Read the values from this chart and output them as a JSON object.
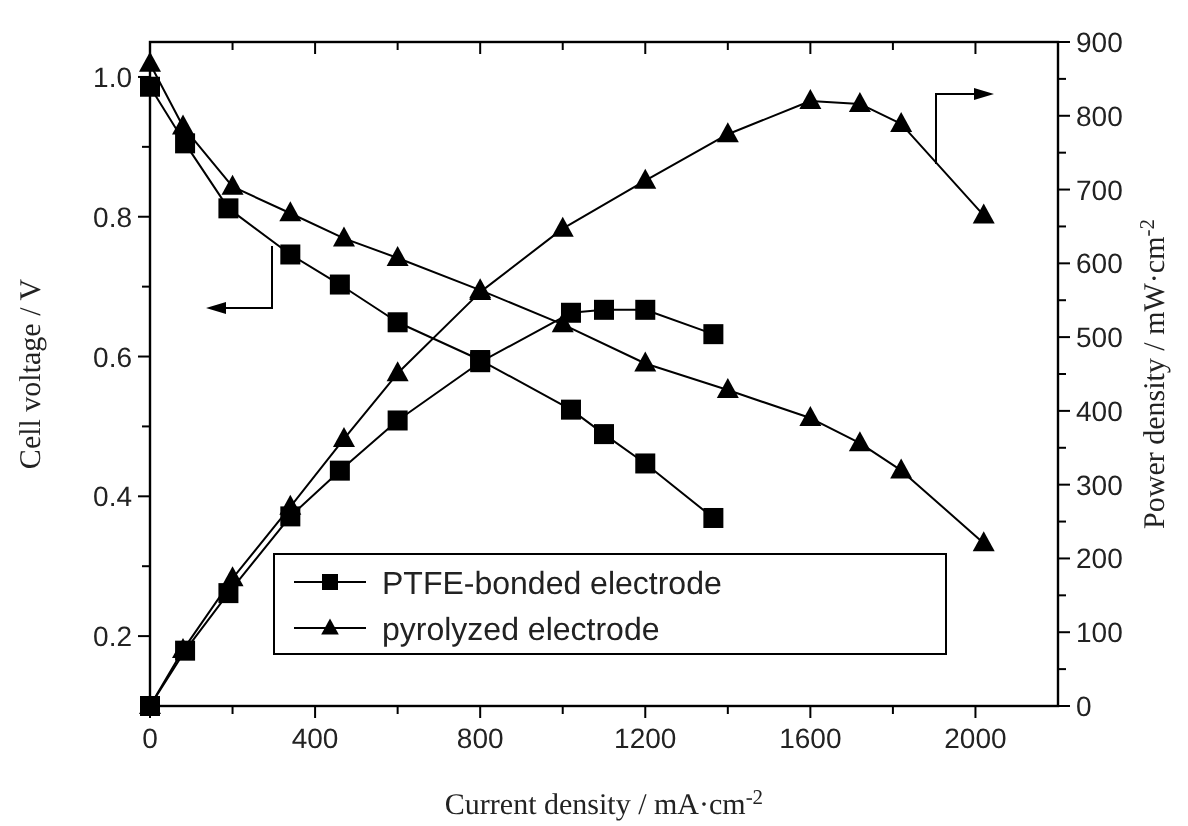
{
  "chart_data": {
    "type": "line",
    "xlabel": "Current density / mA·cm$^{-2}$",
    "ylabel": "Cell voltage / V",
    "y2label": "Power density  / mW·cm$^{-2}$",
    "xlim": [
      0,
      2200
    ],
    "xticks": [
      0,
      {
        "value": 200,
        "label": null
      },
      400,
      {
        "value": 600,
        "label": null
      },
      800,
      {
        "value": 1000,
        "label": null
      },
      1200,
      {
        "value": 1400,
        "label": null
      },
      1600,
      {
        "value": 1800,
        "label": null
      },
      2000
    ],
    "ylim": [
      0.1,
      1.05
    ],
    "yticks": [
      {
        "value": 0.1,
        "label": null
      },
      0.2,
      {
        "value": 0.3,
        "label": null
      },
      0.4,
      {
        "value": 0.5,
        "label": null
      },
      0.6,
      {
        "value": 0.7,
        "label": null
      },
      0.8,
      {
        "value": 0.9,
        "label": null
      },
      {
        "value": 1,
        "label": "1.0"
      }
    ],
    "y2lim": [
      0,
      900
    ],
    "y2ticks": [
      0,
      100,
      200,
      300,
      400,
      500,
      600,
      700,
      800,
      900
    ],
    "legend": "bottom",
    "grid": false,
    "line_style": "solid",
    "series": [
      {
        "name": "PTFE-bonded electrode",
        "color": "#000000",
        "marker": "square",
        "x": [
          0,
          85,
          190,
          340,
          460,
          600,
          800,
          1020,
          1100,
          1200,
          1365
        ],
        "values": [
          0.986,
          0.905,
          0.812,
          0.746,
          0.703,
          0.649,
          0.595,
          0.524,
          0.489,
          0.447,
          0.369
        ]
      },
      {
        "name": "pyrolyzed electrode",
        "color": "#000000",
        "marker": "triangle",
        "x": [
          0,
          80,
          200,
          340,
          470,
          600,
          800,
          1000,
          1200,
          1400,
          1600,
          1720,
          1820,
          2020
        ],
        "values": [
          1.019,
          0.929,
          0.843,
          0.805,
          0.769,
          0.741,
          0.695,
          0.646,
          0.59,
          0.552,
          0.512,
          0.476,
          0.437,
          0.333
        ]
      },
      {
        "color": "#000000",
        "marker": "square",
        "axis": "y2",
        "x": [
          0,
          85,
          190,
          340,
          460,
          600,
          800,
          1020,
          1100,
          1200,
          1365
        ],
        "values": [
          0,
          75,
          153,
          257,
          319,
          387,
          466,
          533,
          537,
          537,
          504
        ]
      },
      {
        "color": "#000000",
        "marker": "triangle",
        "axis": "y2",
        "x": [
          0,
          80,
          200,
          340,
          470,
          600,
          800,
          1000,
          1200,
          1400,
          1600,
          1720,
          1820,
          2020
        ],
        "values": [
          0,
          76,
          173,
          270,
          362,
          451,
          561,
          647,
          712,
          775,
          820,
          816,
          789,
          665
        ]
      }
    ]
  }
}
